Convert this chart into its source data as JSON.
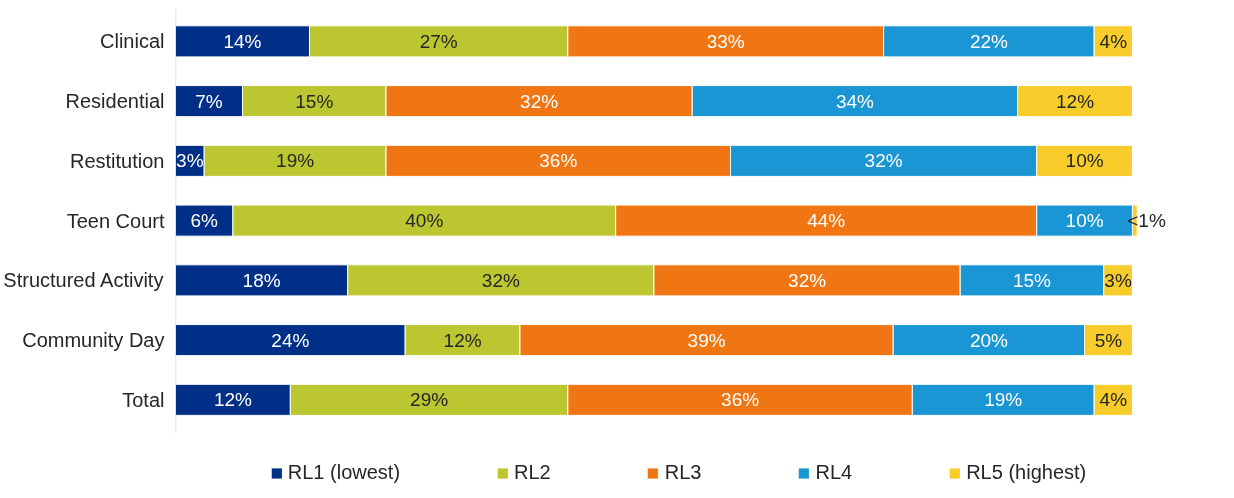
{
  "chart_data": {
    "type": "bar",
    "orientation": "horizontal",
    "stacked": true,
    "legend": "bottom",
    "categories": [
      "Clinical",
      "Residential",
      "Restitution",
      "Teen Court",
      "Structured Activity",
      "Community Day",
      "Total"
    ],
    "series": [
      {
        "name": "RL1 (lowest)",
        "color": "#002f87",
        "values": [
          14,
          7,
          3,
          6,
          18,
          24,
          12
        ],
        "value_labels": [
          "14%",
          "7%",
          "3%",
          "6%",
          "18%",
          "24%",
          "12%"
        ]
      },
      {
        "name": "RL2",
        "color": "#bcc631",
        "values": [
          27,
          15,
          19,
          40,
          32,
          12,
          29
        ],
        "value_labels": [
          "27%",
          "15%",
          "19%",
          "40%",
          "32%",
          "12%",
          "29%"
        ]
      },
      {
        "name": "RL3",
        "color": "#f07613",
        "values": [
          33,
          32,
          36,
          44,
          32,
          39,
          36
        ],
        "value_labels": [
          "33%",
          "32%",
          "36%",
          "44%",
          "32%",
          "39%",
          "36%"
        ]
      },
      {
        "name": "RL4",
        "color": "#1a96d4",
        "values": [
          22,
          34,
          32,
          10,
          15,
          20,
          19
        ],
        "value_labels": [
          "22%",
          "34%",
          "32%",
          "10%",
          "15%",
          "20%",
          "19%"
        ]
      },
      {
        "name": "RL5 (highest)",
        "color": "#f8cc2a",
        "values": [
          4,
          12,
          10,
          0.5,
          3,
          5,
          4
        ],
        "value_labels": [
          "4%",
          "12%",
          "10%",
          "<1%",
          "3%",
          "5%",
          "4%"
        ]
      }
    ]
  }
}
